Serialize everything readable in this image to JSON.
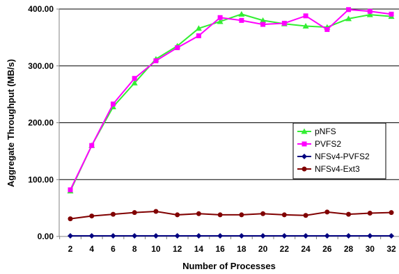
{
  "chart_data": {
    "type": "line",
    "title": "",
    "xlabel": "Number of Processes",
    "ylabel": "Aggregate Throughput (MB/s)",
    "x": [
      2,
      4,
      6,
      8,
      10,
      12,
      14,
      16,
      18,
      20,
      22,
      24,
      26,
      28,
      30,
      32
    ],
    "x_ticks": [
      "2",
      "4",
      "6",
      "8",
      "10",
      "12",
      "14",
      "16",
      "18",
      "20",
      "22",
      "24",
      "26",
      "28",
      "30",
      "32"
    ],
    "ylim": [
      0,
      400
    ],
    "y_ticks": [
      0,
      100,
      200,
      300,
      400
    ],
    "y_tick_labels": [
      "0.00",
      "100.00",
      "200.00",
      "300.00",
      "400.00"
    ],
    "grid": "horizontal",
    "legend_position": "right",
    "series": [
      {
        "name": "pNFS",
        "color": "#33ee33",
        "marker": "triangle",
        "values": [
          80,
          160,
          228,
          270,
          312,
          335,
          366,
          378,
          391,
          380,
          374,
          370,
          368,
          383,
          390,
          387
        ]
      },
      {
        "name": "PVFS2",
        "color": "#ff00ff",
        "marker": "square",
        "values": [
          82,
          160,
          233,
          278,
          309,
          332,
          353,
          385,
          380,
          373,
          375,
          388,
          364,
          399,
          396,
          391
        ]
      },
      {
        "name": "NFSv4-PVFS2",
        "color": "#000080",
        "marker": "diamond",
        "values": [
          1,
          1,
          1,
          1,
          1,
          1,
          1,
          1,
          1,
          1,
          1,
          1,
          1,
          1,
          1,
          1
        ]
      },
      {
        "name": "NFSv4-Ext3",
        "color": "#800000",
        "marker": "circle",
        "values": [
          31,
          36,
          39,
          42,
          44,
          38,
          40,
          38,
          38,
          40,
          38,
          37,
          43,
          39,
          41,
          42
        ]
      }
    ]
  }
}
